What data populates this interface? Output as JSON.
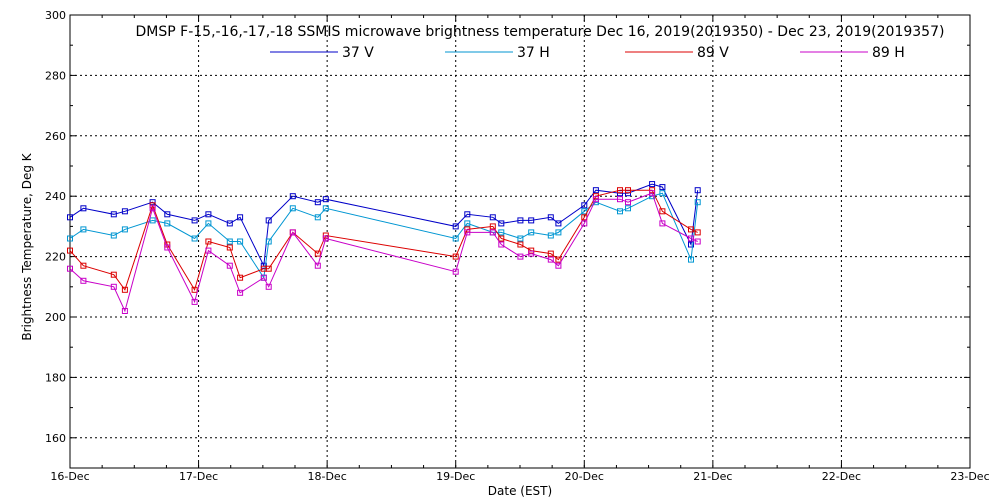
{
  "chart_data": {
    "type": "line",
    "title": "DMSP F-15,-16,-17,-18 SSMIS microwave brightness temperature Dec 16, 2019(2019350) - Dec 23, 2019(2019357)",
    "xlabel": "Date (EST)",
    "ylabel": "Brightness Temperature, Deg K",
    "xlim": [
      "2019-12-16",
      "2019-12-23"
    ],
    "ylim": [
      150,
      300
    ],
    "x_tick_labels": [
      "16-Dec",
      "17-Dec",
      "18-Dec",
      "19-Dec",
      "20-Dec",
      "21-Dec",
      "22-Dec",
      "23-Dec"
    ],
    "y_ticks": [
      160,
      180,
      200,
      220,
      240,
      260,
      280,
      300
    ],
    "grid": true,
    "legend_position": "top-center",
    "x": [
      "2019-12-16 00:00",
      "2019-12-16 02:30",
      "2019-12-16 08:10",
      "2019-12-16 10:15",
      "2019-12-16 15:25",
      "2019-12-16 18:10",
      "2019-12-16 23:15",
      "2019-12-17 01:50",
      "2019-12-17 05:50",
      "2019-12-17 07:45",
      "2019-12-17 12:10",
      "2019-12-17 13:05",
      "2019-12-17 17:35",
      "2019-12-17 22:15",
      "2019-12-17 23:45",
      "2019-12-19 00:00",
      "2019-12-19 02:10",
      "2019-12-19 06:55",
      "2019-12-19 08:30",
      "2019-12-19 12:05",
      "2019-12-19 14:05",
      "2019-12-19 17:45",
      "2019-12-19 19:10",
      "2019-12-20 00:00",
      "2019-12-20 02:10",
      "2019-12-20 06:40",
      "2019-12-20 08:10",
      "2019-12-20 12:40",
      "2019-12-20 14:35",
      "2019-12-20 19:55",
      "2019-12-20 21:10"
    ],
    "series": [
      {
        "name": "37 V",
        "color": "#0000c8",
        "values": [
          233,
          236,
          234,
          235,
          238,
          234,
          232,
          234,
          231,
          233,
          217,
          232,
          240,
          238,
          239,
          230,
          234,
          233,
          231,
          232,
          232,
          233,
          231,
          237,
          242,
          241,
          241,
          244,
          243,
          224,
          242
        ]
      },
      {
        "name": "37 H",
        "color": "#0096d2",
        "values": [
          226,
          229,
          227,
          229,
          232,
          231,
          226,
          231,
          225,
          225,
          213,
          225,
          236,
          233,
          236,
          226,
          231,
          228,
          228,
          226,
          228,
          227,
          228,
          235,
          238,
          235,
          236,
          240,
          241,
          219,
          238
        ]
      },
      {
        "name": "89 V",
        "color": "#dc0000",
        "values": [
          222,
          217,
          214,
          209,
          237,
          224,
          209,
          225,
          223,
          213,
          216,
          216,
          228,
          221,
          227,
          220,
          229,
          230,
          226,
          224,
          222,
          221,
          219,
          233,
          240,
          242,
          242,
          242,
          235,
          229,
          228
        ]
      },
      {
        "name": "89 H",
        "color": "#c800c8",
        "values": [
          216,
          212,
          210,
          202,
          236,
          223,
          205,
          222,
          217,
          208,
          213,
          210,
          228,
          217,
          226,
          215,
          228,
          228,
          224,
          220,
          221,
          219,
          217,
          231,
          239,
          239,
          238,
          241,
          231,
          226,
          225
        ]
      }
    ]
  }
}
